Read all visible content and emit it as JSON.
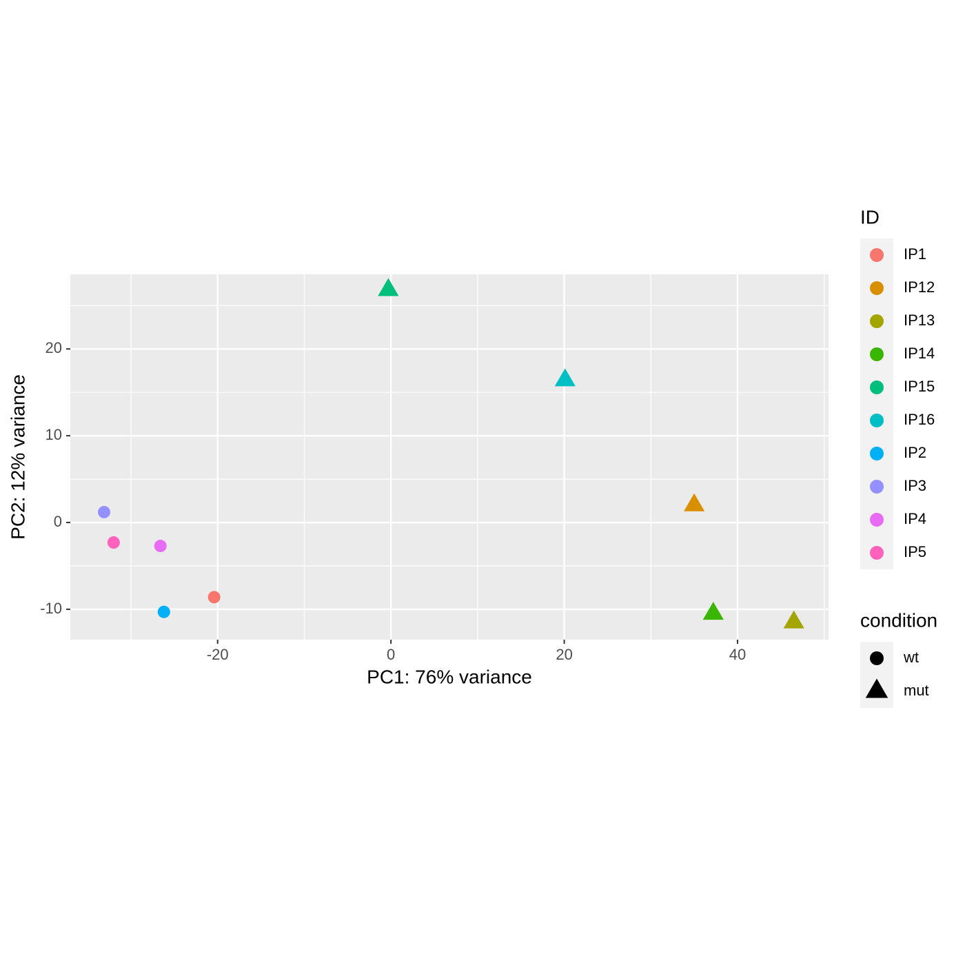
{
  "chart_data": {
    "type": "scatter",
    "x_label": "PC1: 76% variance",
    "y_label": "PC2: 12% variance",
    "xlim": [
      -37,
      50.5
    ],
    "ylim": [
      -13.5,
      28.6
    ],
    "xticks": [
      -20,
      0,
      20,
      40
    ],
    "yticks": [
      -10,
      0,
      10,
      20
    ],
    "x_minor_breaks": [
      -30,
      -10,
      10,
      30,
      50
    ],
    "y_minor_breaks": [
      -5,
      5,
      15,
      25
    ],
    "grid": true,
    "legend_title": "ID",
    "shape_legend": {
      "title": "condition",
      "items": [
        {
          "name": "wt",
          "shape": "circle"
        },
        {
          "name": "mut",
          "shape": "triangle"
        }
      ]
    },
    "series": [
      {
        "name": "IP1",
        "color": "#F8766D",
        "condition": "wt",
        "x": [
          -20.4
        ],
        "values": [
          -8.6
        ]
      },
      {
        "name": "IP12",
        "color": "#D89000",
        "condition": "mut",
        "x": [
          35.0
        ],
        "values": [
          2.0
        ]
      },
      {
        "name": "IP13",
        "color": "#A3A500",
        "condition": "mut",
        "x": [
          46.5
        ],
        "values": [
          -11.5
        ]
      },
      {
        "name": "IP14",
        "color": "#39B600",
        "condition": "mut",
        "x": [
          37.2
        ],
        "values": [
          -10.5
        ]
      },
      {
        "name": "IP15",
        "color": "#00BF7D",
        "condition": "mut",
        "x": [
          -0.3
        ],
        "values": [
          26.8
        ]
      },
      {
        "name": "IP16",
        "color": "#00BFC4",
        "condition": "mut",
        "x": [
          20.1
        ],
        "values": [
          16.4
        ]
      },
      {
        "name": "IP2",
        "color": "#00B0F6",
        "condition": "wt",
        "x": [
          -26.2
        ],
        "values": [
          -10.3
        ]
      },
      {
        "name": "IP3",
        "color": "#9590FF",
        "condition": "wt",
        "x": [
          -33.1
        ],
        "values": [
          1.2
        ]
      },
      {
        "name": "IP4",
        "color": "#E76BF3",
        "condition": "wt",
        "x": [
          -26.6
        ],
        "values": [
          -2.7
        ]
      },
      {
        "name": "IP5",
        "color": "#FF62BC",
        "condition": "wt",
        "x": [
          -32.0
        ],
        "values": [
          -2.3
        ]
      }
    ]
  }
}
